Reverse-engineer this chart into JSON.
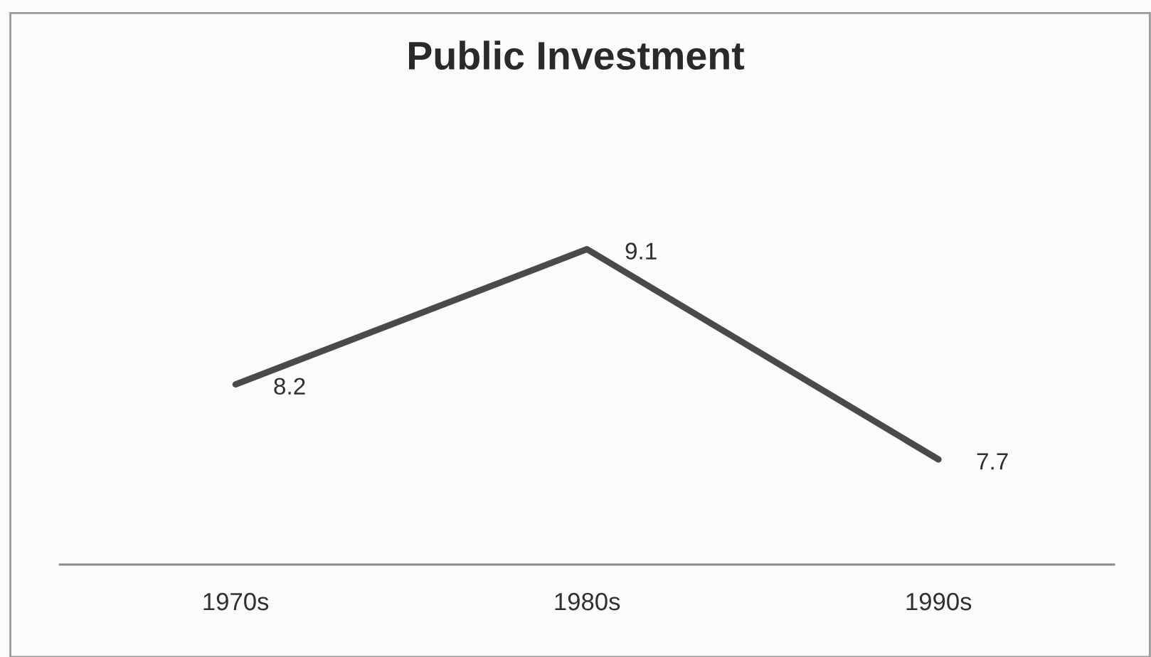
{
  "chart_data": {
    "type": "line",
    "title": "Public Investment",
    "categories": [
      "1970s",
      "1980s",
      "1990s"
    ],
    "series": [
      {
        "color": "#4a4a4a",
        "values": [
          8.2,
          9.1,
          7.7
        ]
      }
    ],
    "tick_labels": "x",
    "data_labels": true
  }
}
